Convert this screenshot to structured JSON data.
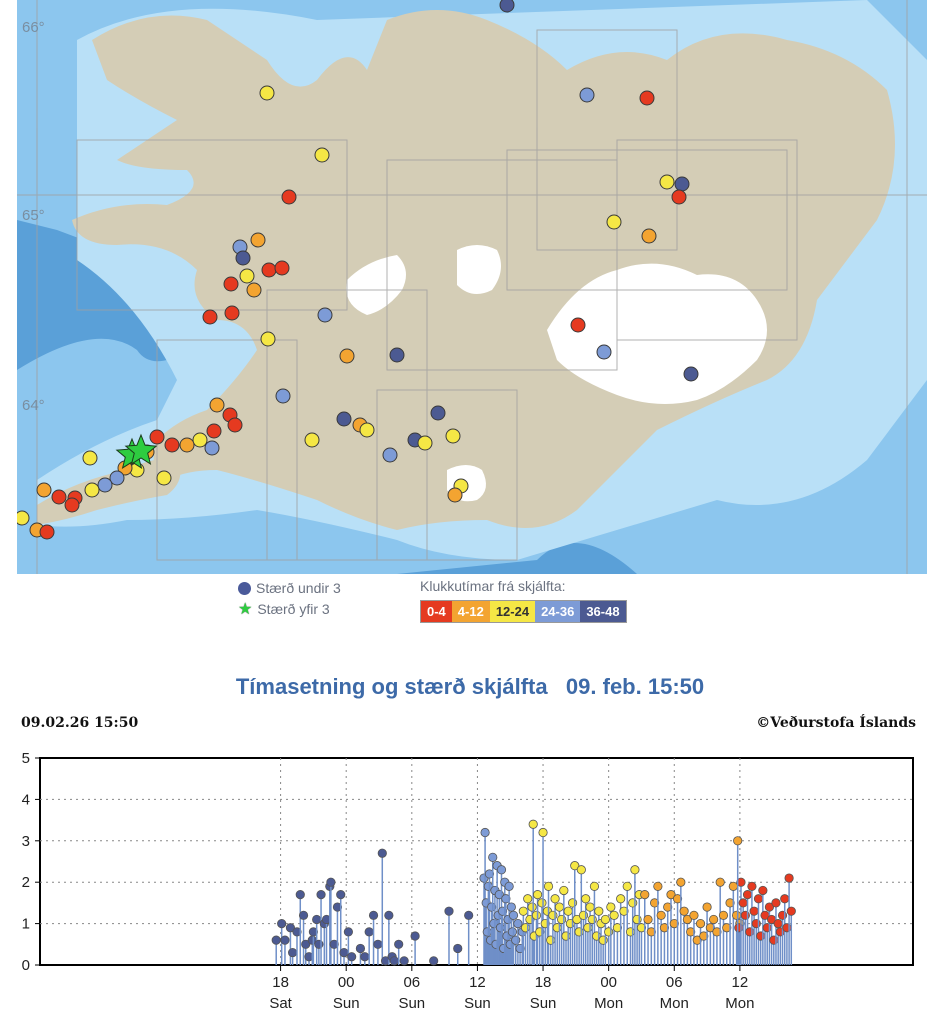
{
  "map": {
    "lat_labels": [
      "66°",
      "65°",
      "64°"
    ],
    "legend": {
      "size_under": "Stærð undir 3",
      "size_over": "Stærð yfir 3",
      "hours_title": "Klukkutímar frá skjálfta:",
      "ranges": [
        "0-4",
        "4-12",
        "12-24",
        "24-36",
        "36-48"
      ]
    },
    "colors": {
      "sea_deep": "#5aa0d8",
      "sea_mid": "#8cc6ee",
      "sea_shallow": "#b9e0f7",
      "land": "#d4cdb6",
      "glacier": "#ffffff",
      "age_0_4": "#e53a20",
      "age_4_12": "#f3a431",
      "age_12_24": "#f5e745",
      "age_24_36": "#7d9bd6",
      "age_36_48": "#4c5a92",
      "large_quake": "#2ecc40"
    }
  },
  "chart": {
    "heading": "Tímasetning og stærð skjálfta   09. feb. 15:50",
    "timestamp": "09.02.26 15:50",
    "credit": "©Veðurstofa Íslands"
  },
  "chart_data": {
    "type": "scatter",
    "title": "Tímasetning og stærð skjálfta   09. feb. 15:50",
    "xlabel": "",
    "ylabel": "",
    "ylim": [
      0,
      5
    ],
    "yticks": [
      "0",
      "1",
      "2",
      "3",
      "4",
      "5"
    ],
    "xlim_hours": [
      -22,
      57.83
    ],
    "xticks": [
      {
        "hour": 0,
        "time": "18",
        "day": "Sat"
      },
      {
        "hour": 6,
        "time": "00",
        "day": "Sun"
      },
      {
        "hour": 12,
        "time": "06",
        "day": "Sun"
      },
      {
        "hour": 18,
        "time": "12",
        "day": "Sun"
      },
      {
        "hour": 24,
        "time": "18",
        "day": "Sun"
      },
      {
        "hour": 30,
        "time": "00",
        "day": "Mon"
      },
      {
        "hour": 36,
        "time": "06",
        "day": "Mon"
      },
      {
        "hour": 42,
        "time": "12",
        "day": "Mon"
      }
    ],
    "grid": true,
    "series": [
      {
        "name": "36-48",
        "color": "#4c5a92",
        "x": [
          -0.4,
          0.1,
          0.4,
          0.9,
          1.1,
          1.5,
          1.8,
          2.1,
          2.3,
          2.6,
          2.9,
          3.0,
          3.3,
          3.5,
          3.7,
          4.0,
          4.2,
          4.5,
          4.6,
          4.9,
          5.2,
          5.5,
          5.8,
          6.2,
          6.5,
          7.3,
          7.7,
          8.1,
          8.5,
          8.9,
          9.3,
          9.6,
          9.9,
          10.2,
          10.4,
          10.8,
          11.3,
          12.3,
          14.0,
          15.4,
          16.2,
          17.2
        ],
        "y": [
          0.6,
          1.0,
          0.6,
          0.9,
          0.3,
          0.8,
          1.7,
          1.2,
          0.5,
          0.2,
          0.6,
          0.8,
          1.1,
          0.5,
          1.7,
          1.0,
          1.1,
          1.9,
          2.0,
          0.5,
          1.4,
          1.7,
          0.3,
          0.8,
          0.2,
          0.4,
          0.2,
          0.8,
          1.2,
          0.5,
          2.7,
          0.1,
          1.2,
          0.2,
          0.1,
          0.5,
          0.1,
          0.7,
          0.1,
          1.3,
          0.4,
          1.2
        ]
      },
      {
        "name": "24-36",
        "color": "#7d9bd6",
        "x": [
          18.6,
          18.7,
          18.8,
          18.9,
          19.0,
          19.1,
          19.2,
          19.3,
          19.4,
          19.5,
          19.6,
          19.7,
          19.8,
          19.9,
          20.0,
          20.1,
          20.2,
          20.3,
          20.4,
          20.5,
          20.6,
          20.7,
          20.8,
          20.9,
          21.0,
          21.1,
          21.2,
          21.3,
          21.5,
          21.7,
          21.9,
          22.1
        ],
        "y": [
          2.1,
          3.2,
          1.5,
          0.8,
          1.9,
          2.2,
          0.6,
          1.4,
          2.6,
          1.0,
          1.8,
          0.5,
          2.4,
          1.2,
          1.7,
          0.9,
          2.3,
          1.3,
          0.4,
          2.0,
          1.6,
          0.7,
          1.1,
          1.9,
          0.5,
          1.4,
          0.8,
          1.2,
          0.6,
          1.0,
          0.4,
          0.8
        ]
      },
      {
        "name": "12-24",
        "color": "#f5e745",
        "x": [
          22.2,
          22.4,
          22.6,
          22.8,
          23.0,
          23.1,
          23.2,
          23.4,
          23.5,
          23.7,
          23.9,
          24.0,
          24.2,
          24.4,
          24.5,
          24.7,
          24.9,
          25.1,
          25.3,
          25.5,
          25.7,
          25.9,
          26.1,
          26.3,
          26.5,
          26.7,
          26.9,
          27.1,
          27.3,
          27.5,
          27.7,
          27.9,
          28.1,
          28.3,
          28.5,
          28.7,
          28.9,
          29.1,
          29.3,
          29.5,
          29.7,
          30.0,
          30.2,
          30.5,
          30.8,
          31.1,
          31.4,
          31.7,
          32.0,
          32.2,
          32.4,
          32.6,
          32.8,
          33.0
        ],
        "y": [
          1.3,
          0.9,
          1.6,
          1.1,
          1.4,
          3.4,
          0.7,
          1.2,
          1.7,
          0.8,
          1.5,
          3.2,
          1.0,
          1.3,
          1.9,
          0.6,
          1.2,
          1.6,
          0.9,
          1.4,
          1.1,
          1.8,
          0.7,
          1.3,
          1.0,
          1.5,
          2.4,
          1.1,
          0.8,
          2.3,
          1.2,
          1.6,
          0.9,
          1.4,
          1.1,
          1.9,
          0.7,
          1.3,
          1.0,
          0.6,
          1.1,
          0.8,
          1.4,
          1.2,
          0.9,
          1.6,
          1.3,
          1.9,
          0.8,
          1.5,
          2.3,
          1.1,
          1.7,
          0.9
        ]
      },
      {
        "name": "4-12",
        "color": "#f3a431",
        "x": [
          33.3,
          33.6,
          33.9,
          34.2,
          34.5,
          34.8,
          35.1,
          35.4,
          35.7,
          36.0,
          36.3,
          36.6,
          36.9,
          37.2,
          37.5,
          37.8,
          38.1,
          38.4,
          38.7,
          39.0,
          39.3,
          39.6,
          39.9,
          40.2,
          40.5,
          40.8,
          41.1,
          41.4,
          41.7,
          42.0
        ],
        "y": [
          1.7,
          1.1,
          0.8,
          1.5,
          1.9,
          1.2,
          0.9,
          1.4,
          1.7,
          1.0,
          1.6,
          2.0,
          1.3,
          1.1,
          0.8,
          1.2,
          0.6,
          1.0,
          0.7,
          1.4,
          0.9,
          1.1,
          0.8,
          2.0,
          1.2,
          0.9,
          1.5,
          1.9,
          1.2,
          1.0
        ]
      },
      {
        "name": "0-4",
        "color": "#e53a20",
        "x": [
          41.9,
          42.1,
          42.3,
          42.5,
          42.7,
          42.9,
          43.1,
          43.3,
          43.5,
          43.7,
          43.9,
          44.1,
          44.3,
          44.5,
          44.7,
          44.9,
          45.1,
          45.3,
          45.5,
          45.7,
          45.9,
          46.1,
          46.3,
          46.5,
          46.7
        ],
        "y": [
          0.9,
          2.0,
          1.5,
          1.2,
          1.7,
          0.8,
          1.9,
          1.3,
          1.0,
          1.6,
          0.7,
          1.8,
          1.2,
          0.9,
          1.4,
          1.1,
          0.6,
          1.5,
          1.0,
          0.8,
          1.2,
          1.6,
          0.9,
          2.1,
          1.3
        ]
      }
    ],
    "large_events": [
      {
        "x": 41.8,
        "y": 3.0,
        "color": "#f3a431"
      }
    ]
  }
}
